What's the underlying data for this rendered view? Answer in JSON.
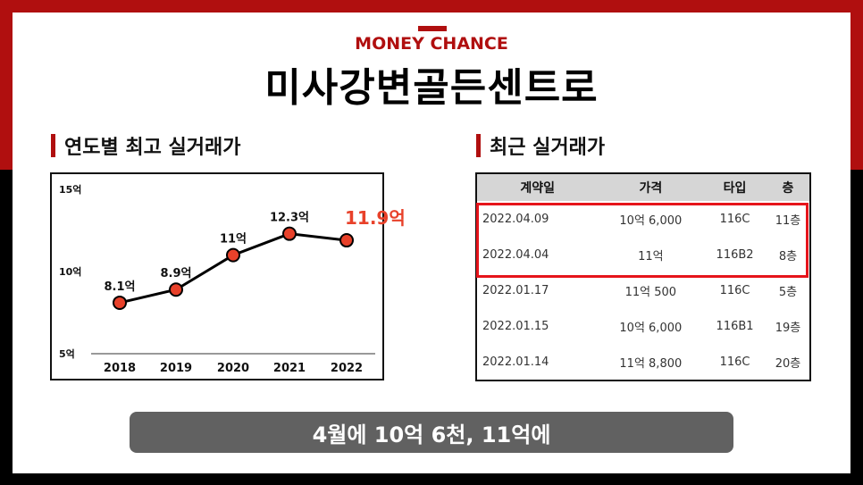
{
  "header": {
    "brand": "MONEY CHANCE",
    "title": "미사강변골든센트로"
  },
  "sections": {
    "chart_title": "연도별 최고 실거래가",
    "table_title": "최근 실거래가"
  },
  "chart_data": {
    "type": "line",
    "title": "",
    "categories": [
      "2018",
      "2019",
      "2020",
      "2021",
      "2022"
    ],
    "values": [
      8.1,
      8.9,
      11,
      12.3,
      11.9
    ],
    "data_labels": [
      "8.1억",
      "8.9억",
      "11억",
      "12.3억",
      "11.9억"
    ],
    "y_ticks": [
      5,
      10,
      15
    ],
    "y_tick_labels": [
      "5억",
      "10억",
      "15억"
    ],
    "ylim": [
      5,
      15
    ],
    "xlabel": "",
    "ylabel": "",
    "grid": false,
    "highlight_color": "#e8412a",
    "point_color": "#e8412a",
    "line_color": "#000000"
  },
  "table": {
    "headers": [
      "계약일",
      "가격",
      "타입",
      "층"
    ],
    "rows": [
      [
        "2022.04.09",
        "10억 6,000",
        "116C",
        "11층"
      ],
      [
        "2022.04.04",
        "11억",
        "116B2",
        "8층"
      ],
      [
        "2022.01.17",
        "11억 500",
        "116C",
        "5층"
      ],
      [
        "2022.01.15",
        "10억 6,000",
        "116B1",
        "19층"
      ],
      [
        "2022.01.14",
        "11억 8,800",
        "116C",
        "20층"
      ]
    ],
    "highlight_color": "#e6141b"
  },
  "caption": "4월에 10억 6천, 11억에",
  "colors": {
    "brand_red": "#b00f0f",
    "pill_gray": "#616161"
  }
}
